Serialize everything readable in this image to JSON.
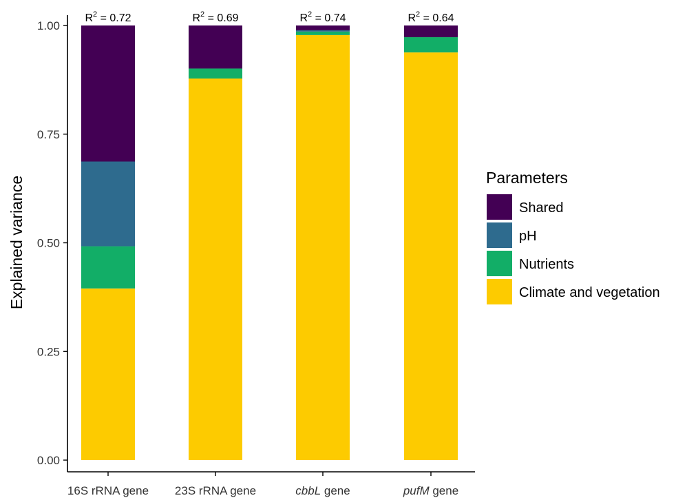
{
  "chart_data": {
    "type": "bar",
    "stacked": true,
    "ylabel": "Explained variance",
    "ylim": [
      0,
      1
    ],
    "yticks": [
      "0.00",
      "0.25",
      "0.50",
      "0.75",
      "1.00"
    ],
    "grid": false,
    "legend_position": "right",
    "categories": [
      {
        "label": "16S rRNA gene",
        "gene": "",
        "suffix": "",
        "r2": "0.72"
      },
      {
        "label": "23S rRNA gene",
        "gene": "",
        "suffix": "",
        "r2": "0.69"
      },
      {
        "label": "",
        "gene": "cbbL",
        "suffix": " gene",
        "r2": "0.74"
      },
      {
        "label": "",
        "gene": "pufM",
        "suffix": " gene",
        "r2": "0.64"
      }
    ],
    "annotation_prefix": "R",
    "annotation_sup": "2",
    "annotation_eq": " = ",
    "legend_title": "Parameters",
    "series": [
      {
        "name": "Climate and vegetation",
        "color": "#FDCB00",
        "values": [
          0.395,
          0.878,
          0.978,
          0.938
        ]
      },
      {
        "name": "Nutrients",
        "color": "#12AE67",
        "values": [
          0.097,
          0.023,
          0.008,
          0.035
        ]
      },
      {
        "name": "pH",
        "color": "#2E6B8E",
        "values": [
          0.195,
          0.0,
          0.003,
          0.0
        ]
      },
      {
        "name": "Shared",
        "color": "#430054",
        "values": [
          0.313,
          0.099,
          0.011,
          0.027
        ]
      }
    ],
    "legend_order": [
      "Shared",
      "pH",
      "Nutrients",
      "Climate and vegetation"
    ]
  }
}
